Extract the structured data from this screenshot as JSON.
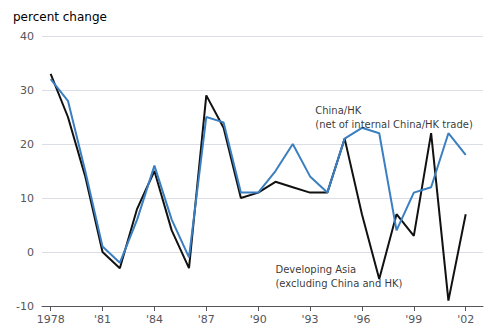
{
  "chart_data": {
    "type": "line",
    "title": "percent change",
    "x": [
      1978,
      1979,
      1980,
      1981,
      1982,
      1983,
      1984,
      1985,
      1986,
      1987,
      1988,
      1989,
      1990,
      1991,
      1992,
      1993,
      1994,
      1995,
      1996,
      1997,
      1998,
      1999,
      2000,
      2001,
      2002
    ],
    "series": [
      {
        "color": "#111111",
        "values": [
          33,
          25,
          14,
          0,
          -3,
          8,
          15,
          4,
          -3,
          29,
          23,
          10,
          11,
          13,
          12,
          11,
          11,
          21,
          7,
          -5,
          7,
          3,
          22,
          -9,
          7
        ]
      },
      {
        "color": "#3a7fc1",
        "values": [
          32,
          28,
          15,
          1,
          -2,
          6,
          16,
          6,
          -1,
          25,
          24,
          11,
          11,
          15,
          20,
          14,
          11,
          21,
          23,
          22,
          4,
          11,
          12,
          22,
          18
        ]
      }
    ],
    "xlim": [
      1977.5,
      2003
    ],
    "xticks": [
      1978,
      {
        "value": 1981,
        "label": "'81"
      },
      {
        "value": 1984,
        "label": "'84"
      },
      {
        "value": 1987,
        "label": "'87"
      },
      {
        "value": 1990,
        "label": "'90"
      },
      {
        "value": 1993,
        "label": "'93"
      },
      {
        "value": 1996,
        "label": "'96"
      },
      {
        "value": 1999,
        "label": "'99"
      },
      {
        "value": 2002,
        "label": "'02"
      }
    ],
    "ylim": [
      -10,
      40
    ],
    "yticks": [
      -10,
      0,
      10,
      20,
      30,
      40
    ],
    "grid": true,
    "annotations": [
      {
        "text": "China/HK\n(net of internal China/HK trade)",
        "x": 1993.3,
        "y": 27.5
      },
      {
        "text": "Developing Asia\n(excluding China and HK)",
        "x": 1991.0,
        "y": -2.0
      }
    ]
  }
}
